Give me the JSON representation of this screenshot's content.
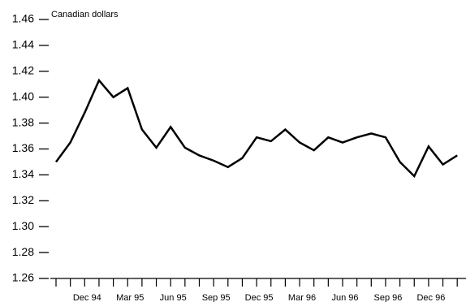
{
  "chart_data": {
    "type": "line",
    "y_label": "Canadian dollars",
    "categories": [
      null,
      null,
      "Dec 94",
      null,
      null,
      "Mar 95",
      null,
      null,
      "Jun 95",
      null,
      null,
      "Sep 95",
      null,
      null,
      "Dec 95",
      null,
      null,
      "Mar 96",
      null,
      null,
      "Jun 96",
      null,
      null,
      "Sep 96",
      null,
      null,
      "Dec 96",
      null,
      null
    ],
    "series": [
      {
        "name": "Canadian dollars",
        "color": "#000000",
        "values": [
          1.35,
          1.365,
          1.388,
          1.413,
          1.4,
          1.407,
          1.375,
          1.361,
          1.377,
          1.361,
          1.355,
          1.351,
          1.346,
          1.353,
          1.369,
          1.366,
          1.375,
          1.365,
          1.359,
          1.369,
          1.365,
          1.369,
          1.372,
          1.369,
          1.35,
          1.339,
          1.362,
          1.348,
          1.355
        ]
      }
    ],
    "ylim": [
      1.26,
      1.46
    ],
    "yticks": [
      1.26,
      1.28,
      {
        "value": 1.3,
        "label": "1.30"
      },
      1.32,
      1.34,
      1.36,
      1.38,
      {
        "value": 1.4,
        "label": "1.40"
      },
      1.42,
      1.44,
      1.46
    ]
  }
}
